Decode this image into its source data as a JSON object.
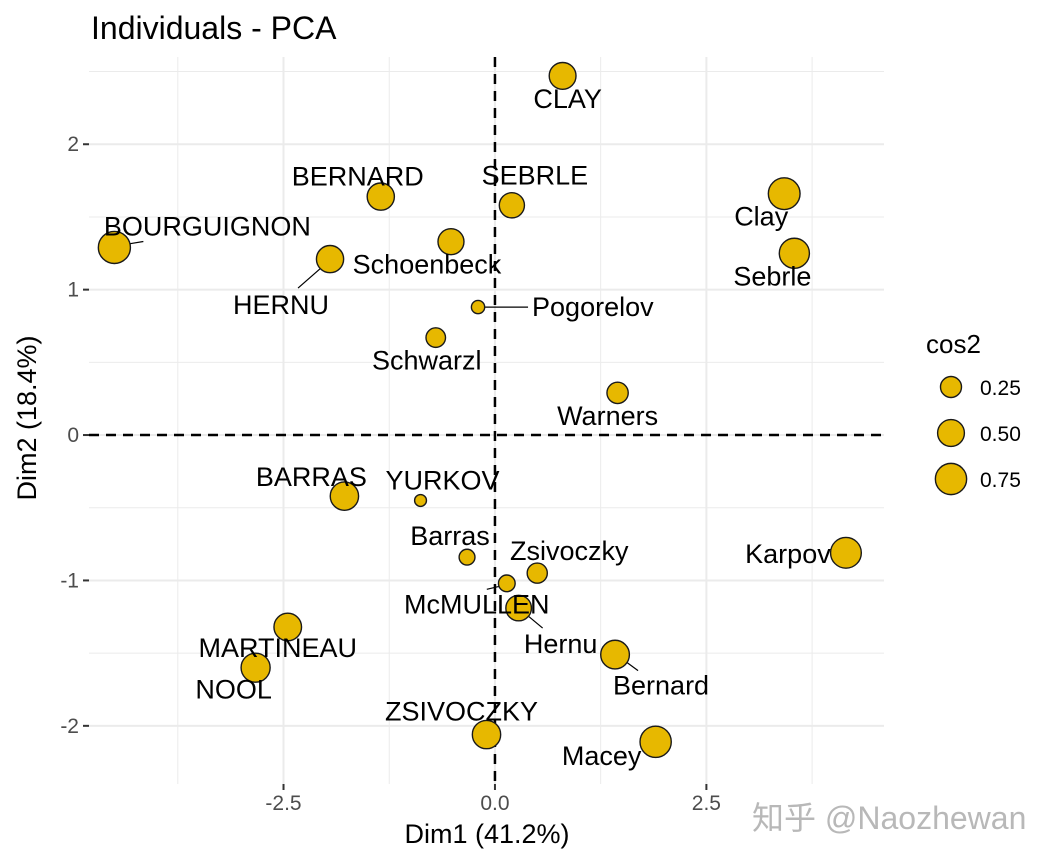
{
  "watermark": "知乎 @Naozhewan",
  "colors": {
    "fill": "#E7B800",
    "stroke": "#1a1a1a",
    "grid": "#ebebeb",
    "tick_text": "#4d4d4d"
  },
  "chart_data": {
    "type": "scatter",
    "title": "Individuals - PCA",
    "xlabel": "Dim1 (41.2%)",
    "ylabel": "Dim2 (18.4%)",
    "xlim": [
      -4.8,
      4.6
    ],
    "ylim": [
      -2.4,
      2.6
    ],
    "x_ticks": [
      -2.5,
      0.0,
      2.5
    ],
    "x_tick_labels": [
      "-2.5",
      "0.0",
      "2.5"
    ],
    "y_ticks": [
      -2,
      -1,
      0,
      1,
      2
    ],
    "y_tick_labels": [
      "-2",
      "-1",
      "0",
      "1",
      "2"
    ],
    "reference_lines": {
      "x": 0,
      "y": 0,
      "style": "dashed"
    },
    "size_variable": "cos2",
    "legend": {
      "title": "cos2",
      "position": "right",
      "entries": [
        {
          "label": "0.25",
          "value": 0.25
        },
        {
          "label": "0.50",
          "value": 0.5
        },
        {
          "label": "0.75",
          "value": 0.75
        }
      ]
    },
    "points": [
      {
        "name": "SEBRLE",
        "x": 0.2,
        "y": 1.58,
        "cos2": 0.42
      },
      {
        "name": "CLAY",
        "x": 0.8,
        "y": 2.47,
        "cos2": 0.5
      },
      {
        "name": "BERNARD",
        "x": -1.35,
        "y": 1.64,
        "cos2": 0.52
      },
      {
        "name": "YURKOV",
        "x": -0.88,
        "y": -0.45,
        "cos2": 0.03
      },
      {
        "name": "ZSIVOCZKY",
        "x": -0.1,
        "y": -2.06,
        "cos2": 0.58
      },
      {
        "name": "McMULLEN",
        "x": 0.14,
        "y": -1.02,
        "cos2": 0.12
      },
      {
        "name": "MARTINEAU",
        "x": -2.45,
        "y": -1.32,
        "cos2": 0.54
      },
      {
        "name": "HERNU",
        "x": -1.95,
        "y": 1.21,
        "cos2": 0.52
      },
      {
        "name": "BARRAS",
        "x": -1.78,
        "y": -0.42,
        "cos2": 0.58
      },
      {
        "name": "NOOL",
        "x": -2.83,
        "y": -1.6,
        "cos2": 0.62
      },
      {
        "name": "BOURGUIGNON",
        "x": -4.5,
        "y": 1.29,
        "cos2": 0.8
      },
      {
        "name": "Sebrle",
        "x": 3.54,
        "y": 1.25,
        "cos2": 0.68
      },
      {
        "name": "Clay",
        "x": 3.42,
        "y": 1.66,
        "cos2": 0.78
      },
      {
        "name": "Karpov",
        "x": 4.15,
        "y": -0.81,
        "cos2": 0.72
      },
      {
        "name": "Macey",
        "x": 1.9,
        "y": -2.11,
        "cos2": 0.75
      },
      {
        "name": "Warners",
        "x": 1.45,
        "y": 0.29,
        "cos2": 0.26
      },
      {
        "name": "Zsivoczky",
        "x": 0.5,
        "y": -0.95,
        "cos2": 0.22
      },
      {
        "name": "Hernu",
        "x": 0.28,
        "y": -1.19,
        "cos2": 0.44
      },
      {
        "name": "Bernard",
        "x": 1.42,
        "y": -1.51,
        "cos2": 0.6
      },
      {
        "name": "Schwarzl",
        "x": -0.7,
        "y": 0.67,
        "cos2": 0.2
      },
      {
        "name": "Pogorelov",
        "x": -0.2,
        "y": 0.88,
        "cos2": 0.05
      },
      {
        "name": "Schoenbeck",
        "x": -0.52,
        "y": 1.33,
        "cos2": 0.46
      },
      {
        "name": "Barras",
        "x": -0.33,
        "y": -0.84,
        "cos2": 0.1
      }
    ]
  }
}
